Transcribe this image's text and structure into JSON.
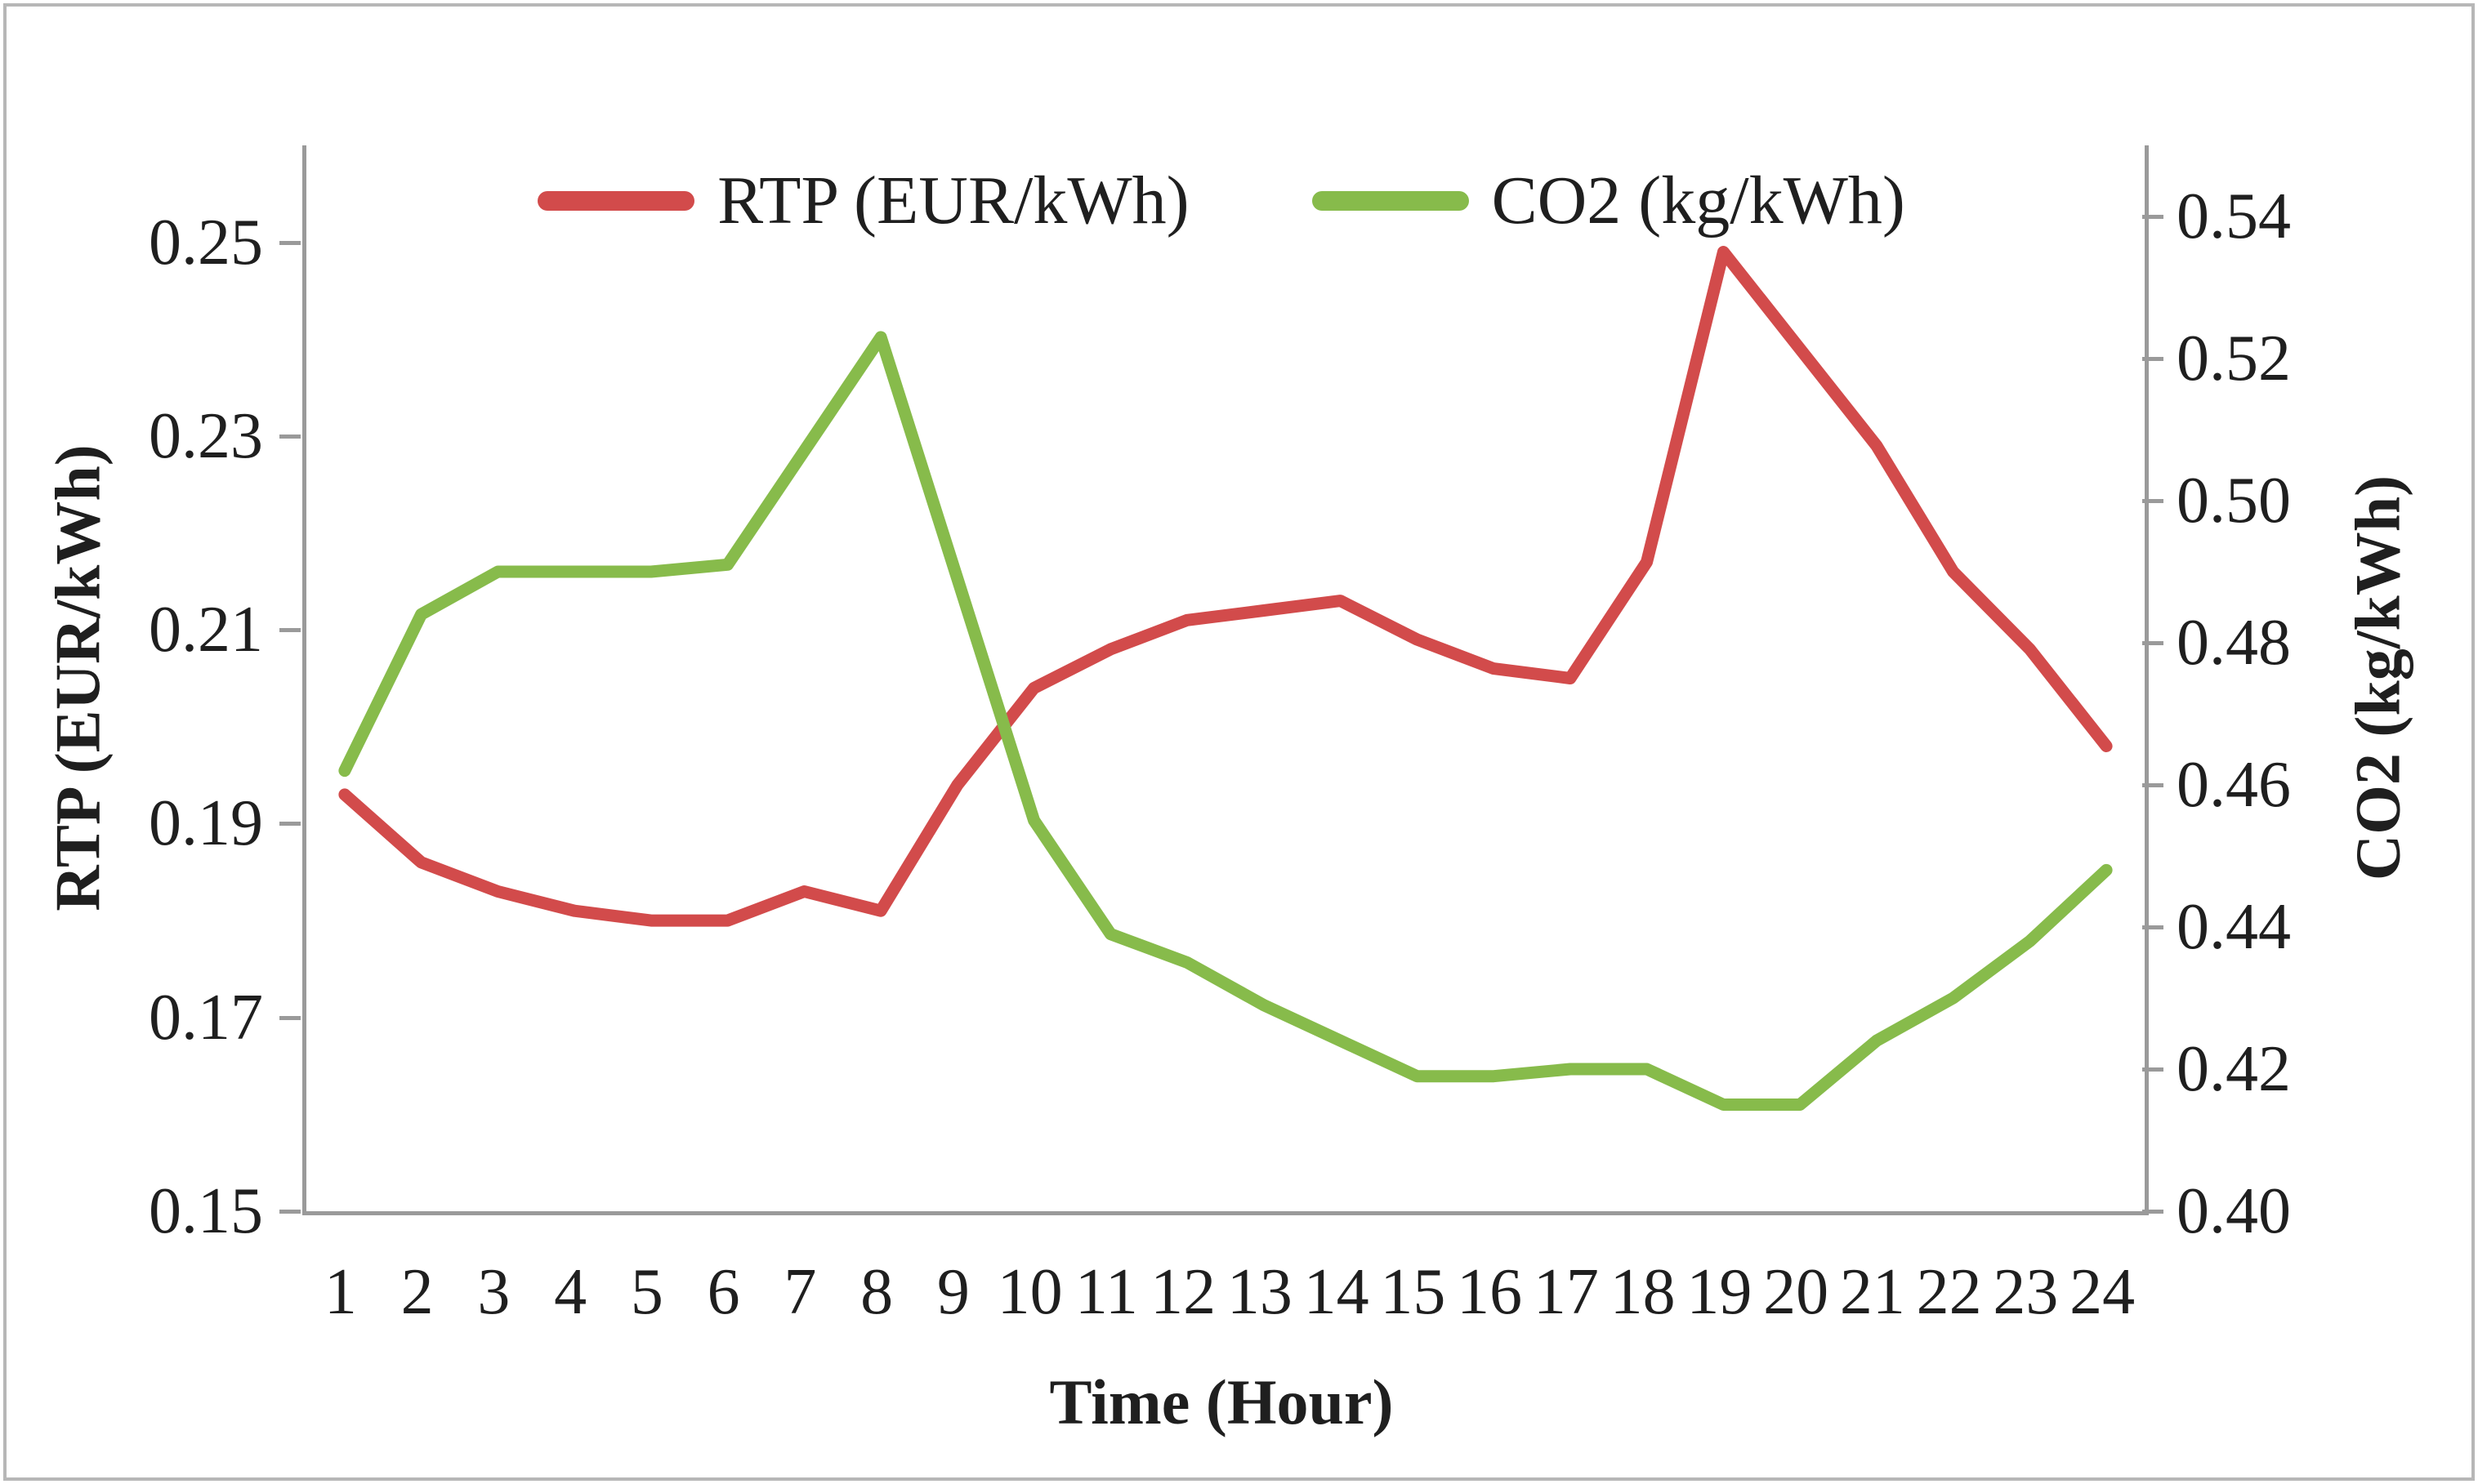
{
  "chart_data": {
    "type": "line",
    "x": [
      "1",
      "2",
      "3",
      "4",
      "5",
      "6",
      "7",
      "8",
      "9",
      "10",
      "11",
      "12",
      "13",
      "14",
      "15",
      "16",
      "17",
      "18",
      "19",
      "20",
      "21",
      "22",
      "23",
      "24"
    ],
    "xlabel": "Time (Hour)",
    "legend_position": "top",
    "grid": false,
    "series": [
      {
        "key": "rtp",
        "name": "RTP (EUR/kWh)",
        "axis": "left",
        "color": "#d24b4b",
        "values": [
          0.193,
          0.186,
          0.183,
          0.181,
          0.18,
          0.18,
          0.183,
          0.181,
          0.194,
          0.204,
          0.208,
          0.211,
          0.212,
          0.213,
          0.209,
          0.206,
          0.205,
          0.217,
          0.249,
          0.239,
          0.229,
          0.216,
          0.208,
          0.198
        ]
      },
      {
        "key": "co2",
        "name": "CO2 (kg/kWh)",
        "axis": "right",
        "color": "#87bb4b",
        "values": [
          0.462,
          0.484,
          0.49,
          0.49,
          0.49,
          0.491,
          0.507,
          0.523,
          0.489,
          0.455,
          0.439,
          0.435,
          0.429,
          0.424,
          0.419,
          0.419,
          0.42,
          0.42,
          0.415,
          0.415,
          0.424,
          0.43,
          0.438,
          0.448
        ]
      }
    ],
    "left_axis": {
      "label": "RTP (EUR/kWh)",
      "min": 0.15,
      "max": 0.26,
      "tick_labels": [
        "0.25",
        "0.23",
        "0.21",
        "0.19",
        "0.17",
        "0.15"
      ]
    },
    "right_axis": {
      "label": "CO2 (kg/kWh)",
      "min": 0.4,
      "max": 0.55,
      "tick_labels": [
        "0.54",
        "0.52",
        "0.50",
        "0.48",
        "0.46",
        "0.44",
        "0.42",
        "0.40"
      ]
    }
  },
  "colors": {
    "axis_line": "#9a9a9a",
    "frame_border": "#b7b7b7",
    "text": "#1f1f1f",
    "rtp_red": "#d24b4b",
    "co2_green": "#87bb4b"
  }
}
